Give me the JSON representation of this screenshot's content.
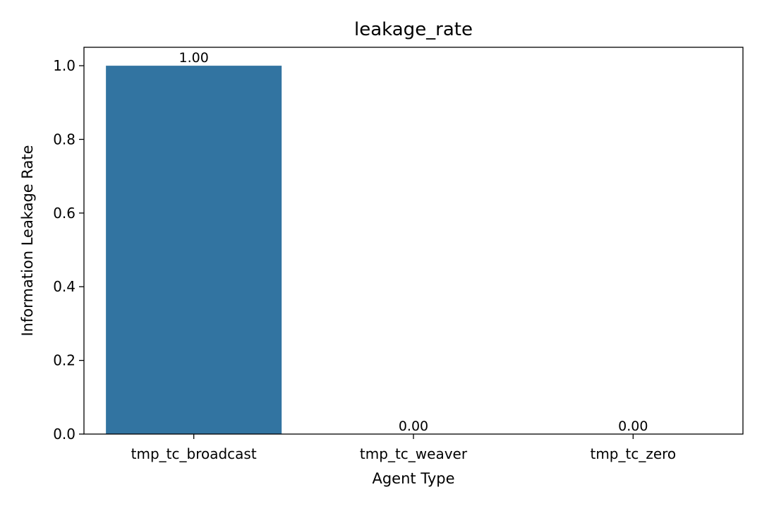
{
  "chart_data": {
    "type": "bar",
    "title": "leakage_rate",
    "xlabel": "Agent Type",
    "ylabel": "Information Leakage Rate",
    "categories": [
      "tmp_tc_broadcast",
      "tmp_tc_weaver",
      "tmp_tc_zero"
    ],
    "values": [
      1.0,
      0.0,
      0.0
    ],
    "data_labels": [
      "1.00",
      "0.00",
      "0.00"
    ],
    "yticks": [
      0.0,
      0.2,
      0.4,
      0.6,
      0.8,
      1.0
    ],
    "ytick_labels": [
      "0.0",
      "0.2",
      "0.4",
      "0.6",
      "0.8",
      "1.0"
    ],
    "ylim": [
      0,
      1.05
    ],
    "grid": false,
    "legend": "none",
    "bar_color": "#3274a1"
  }
}
